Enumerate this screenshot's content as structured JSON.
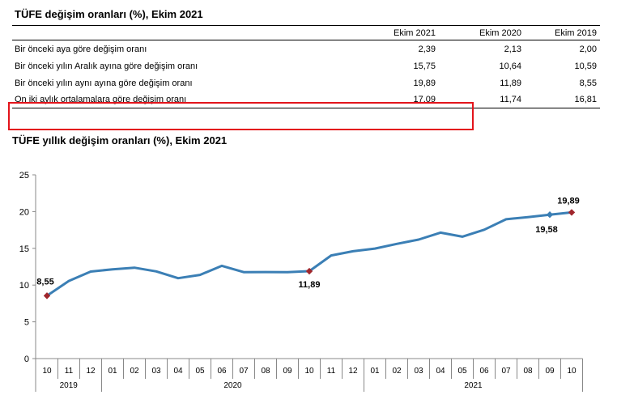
{
  "table": {
    "title": "TÜFE değişim oranları (%), Ekim 2021",
    "columns": [
      "Ekim 2021",
      "Ekim 2020",
      "Ekim 2019"
    ],
    "rows": [
      {
        "label": "Bir önceki aya göre değişim oranı",
        "values": [
          "2,39",
          "2,13",
          "2,00"
        ]
      },
      {
        "label": "Bir önceki yılın Aralık ayına göre değişim oranı",
        "values": [
          "15,75",
          "10,64",
          "10,59"
        ]
      },
      {
        "label": "Bir önceki yılın aynı ayına göre değişim oranı",
        "values": [
          "19,89",
          "11,89",
          "8,55"
        ]
      },
      {
        "label": "On iki aylık ortalamalara göre değişim oranı",
        "values": [
          "17,09",
          "11,74",
          "16,81"
        ]
      }
    ],
    "highlight_color": "#e3141b"
  },
  "chart_data": {
    "type": "line",
    "title": "TÜFE yıllık değişim oranları (%), Ekim 2021",
    "x": [
      "10",
      "11",
      "12",
      "01",
      "02",
      "03",
      "04",
      "05",
      "06",
      "07",
      "08",
      "09",
      "10",
      "11",
      "12",
      "01",
      "02",
      "03",
      "04",
      "05",
      "06",
      "07",
      "08",
      "09",
      "10"
    ],
    "year_groups": [
      {
        "label": "2019",
        "span": 3
      },
      {
        "label": "2020",
        "span": 12
      },
      {
        "label": "2021",
        "span": 10
      }
    ],
    "series": [
      {
        "values": [
          8.55,
          10.56,
          11.84,
          12.15,
          12.37,
          11.86,
          10.94,
          11.39,
          12.62,
          11.76,
          11.77,
          11.75,
          11.89,
          14.03,
          14.6,
          14.97,
          15.61,
          16.19,
          17.14,
          16.59,
          17.53,
          18.95,
          19.25,
          19.58,
          19.89
        ]
      }
    ],
    "highlight_points": [
      {
        "index": 0,
        "label": "8,55"
      },
      {
        "index": 12,
        "label": "11,89"
      },
      {
        "index": 23,
        "label": "19,58"
      },
      {
        "index": 24,
        "label": "19,89"
      }
    ],
    "ylim": [
      0,
      25
    ],
    "yticks": [
      0,
      5,
      10,
      15,
      20,
      25
    ],
    "line_color": "#3b7fb5",
    "marker_color": "#a0262c",
    "grid": false,
    "legend": "none"
  }
}
